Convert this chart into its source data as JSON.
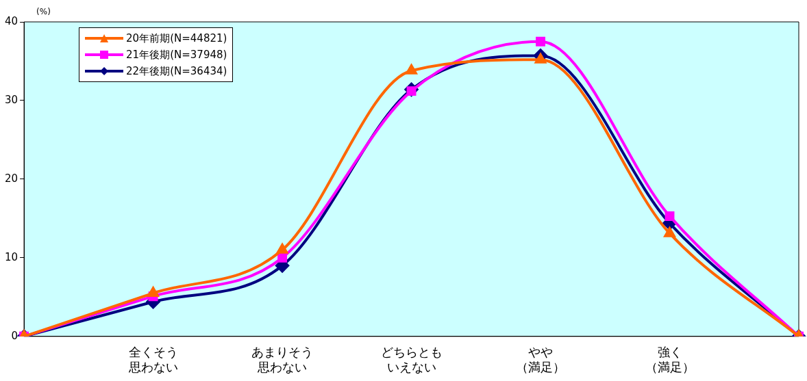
{
  "chart_data": {
    "type": "line",
    "ylabel": "(%)",
    "categories": [
      null,
      "全くそう思わない",
      "あまりそう思わない",
      "どちらともいえない",
      "やや（満足）",
      "強く（満足）",
      null
    ],
    "series": [
      {
        "name": "20年前期(N=44821)",
        "color": "#ff6600",
        "marker": "triangle",
        "values": [
          0,
          5.5,
          11.0,
          33.8,
          35.2,
          13.1,
          0
        ]
      },
      {
        "name": "21年後期(N=37948)",
        "color": "#ff00ff",
        "marker": "square",
        "values": [
          0,
          5.1,
          10.0,
          31.2,
          37.5,
          15.3,
          0
        ]
      },
      {
        "name": "22年後期(N=36434)",
        "color": "#000080",
        "marker": "diamond",
        "values": [
          0,
          4.4,
          9.0,
          31.4,
          35.7,
          14.4,
          0
        ]
      }
    ],
    "ylim": [
      0,
      40
    ],
    "yticks": [
      0,
      10,
      20,
      30,
      40
    ],
    "grid": false,
    "legend": "top left",
    "line_style": "solid"
  }
}
